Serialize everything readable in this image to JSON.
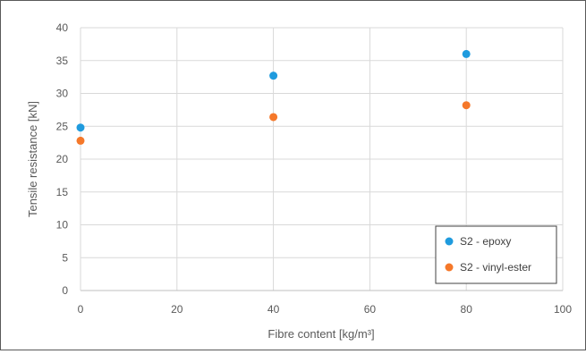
{
  "chart_data": {
    "type": "scatter",
    "title": "",
    "xlabel": "Fibre content [kg/m³]",
    "ylabel": "Tensile resistance [kN]",
    "xlim": [
      0,
      100
    ],
    "ylim": [
      0,
      40
    ],
    "xticks": [
      "0",
      "20",
      "40",
      "60",
      "80",
      "100"
    ],
    "yticks": [
      "0",
      "5",
      "10",
      "15",
      "20",
      "25",
      "30",
      "35",
      "40"
    ],
    "grid": true,
    "legend_position": "bottom-right",
    "series": [
      {
        "name": "S2 - epoxy",
        "color": "#1f9bde",
        "x": [
          0,
          40,
          80
        ],
        "y": [
          24.8,
          32.7,
          36.0
        ]
      },
      {
        "name": "S2 - vinyl-ester",
        "color": "#f5782a",
        "x": [
          0,
          40,
          80
        ],
        "y": [
          22.8,
          26.4,
          28.2
        ]
      }
    ]
  }
}
